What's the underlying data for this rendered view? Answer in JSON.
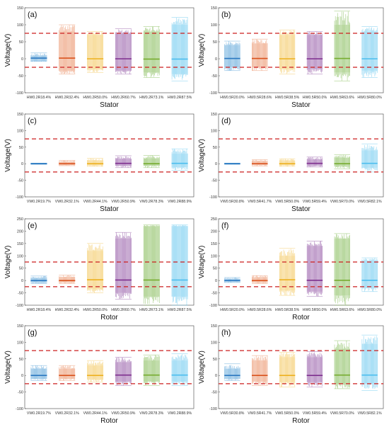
{
  "colors": [
    "#4a9ad4",
    "#e8875a",
    "#f2c24d",
    "#8a4a9e",
    "#7ab64a",
    "#5ec3ec"
  ],
  "median_colors": [
    "#2b78c0",
    "#d9531e",
    "#edb120",
    "#7e2f8e",
    "#77ac30",
    "#4dbeee"
  ],
  "threshold_color": "#cc1f1f",
  "chart_data": [
    {
      "type": "boxplot",
      "panel_label": "(a)",
      "xlabel": "Stator",
      "ylabel": "Voltage(V)",
      "ylim": [
        -100,
        150
      ],
      "yticks": [
        "150",
        "100",
        "50",
        "0",
        "-50",
        "-100"
      ],
      "thresholds": [
        75,
        -25
      ],
      "categories": [
        "HW0.2R18.4%",
        "HW0.2R32.4%",
        "HW0.2R50.0%",
        "HW0.2R60.7%",
        "HW0.2R73.1%",
        "HW0.2R87.5%"
      ],
      "series": [
        {
          "category": "HW0.2R18.4%",
          "min": -8,
          "q1": -6,
          "median": 2,
          "q3": 9,
          "max": 17
        },
        {
          "category": "HW0.2R32.4%",
          "min": -45,
          "q1": -35,
          "median": 2,
          "q3": 80,
          "max": 100
        },
        {
          "category": "HW0.2R50.0%",
          "min": -40,
          "q1": -30,
          "median": 0,
          "q3": 70,
          "max": 80
        },
        {
          "category": "HW0.2R60.7%",
          "min": -45,
          "q1": -35,
          "median": 0,
          "q3": 75,
          "max": 88
        },
        {
          "category": "HW0.2R73.1%",
          "min": -55,
          "q1": -40,
          "median": -1,
          "q3": 80,
          "max": 95
        },
        {
          "category": "HW0.2R87.5%",
          "min": -65,
          "q1": -45,
          "median": -1,
          "q3": 100,
          "max": 122
        }
      ]
    },
    {
      "type": "boxplot",
      "panel_label": "(b)",
      "xlabel": "Stator",
      "ylabel": "Voltage(V)",
      "ylim": [
        -100,
        150
      ],
      "yticks": [
        "150",
        "100",
        "50",
        "0",
        "-50",
        "-100"
      ],
      "thresholds": [
        75,
        -25
      ],
      "categories": [
        "HW0.5R20.0%",
        "HW0.5R28.6%",
        "HW0.5R38.5%",
        "HW0.5R50.0%",
        "HW0.5R63.6%",
        "HW0.5R80.0%"
      ],
      "series": [
        {
          "category": "HW0.5R20.0%",
          "min": -35,
          "q1": -25,
          "median": 1,
          "q3": 40,
          "max": 52
        },
        {
          "category": "HW0.5R28.6%",
          "min": -35,
          "q1": -25,
          "median": 1,
          "q3": 45,
          "max": 58
        },
        {
          "category": "HW0.5R38.5%",
          "min": -45,
          "q1": -30,
          "median": 0,
          "q3": 70,
          "max": 85
        },
        {
          "category": "HW0.5R50.0%",
          "min": -45,
          "q1": -30,
          "median": 0,
          "q3": 70,
          "max": 80
        },
        {
          "category": "HW0.5R63.6%",
          "min": -65,
          "q1": -40,
          "median": 1,
          "q3": 100,
          "max": 140
        },
        {
          "category": "HW0.5R80.0%",
          "min": -55,
          "q1": -35,
          "median": 0,
          "q3": 80,
          "max": 95
        }
      ]
    },
    {
      "type": "boxplot",
      "panel_label": "(c)",
      "xlabel": "Stator",
      "ylabel": "Voltage(V)",
      "ylim": [
        -100,
        150
      ],
      "yticks": [
        "150",
        "100",
        "50",
        "0",
        "-50",
        "-100"
      ],
      "thresholds": [
        75,
        -25
      ],
      "categories": [
        "VW0.2R19.7%",
        "VW0.2R32.1%",
        "VW0.2R44.1%",
        "VW0.2R50.9%",
        "VW0.2R78.3%",
        "VW0.2R88.9%"
      ],
      "series": [
        {
          "category": "VW0.2R19.7%",
          "min": -2,
          "q1": -1,
          "median": 0,
          "q3": 1,
          "max": 2
        },
        {
          "category": "VW0.2R32.1%",
          "min": -6,
          "q1": -4,
          "median": 0,
          "q3": 6,
          "max": 10
        },
        {
          "category": "VW0.2R44.1%",
          "min": -8,
          "q1": -5,
          "median": 0,
          "q3": 10,
          "max": 16
        },
        {
          "category": "VW0.2R50.9%",
          "min": -12,
          "q1": -6,
          "median": 1,
          "q3": 15,
          "max": 24
        },
        {
          "category": "VW0.2R78.3%",
          "min": -12,
          "q1": -6,
          "median": 0,
          "q3": 16,
          "max": 25
        },
        {
          "category": "VW0.2R88.9%",
          "min": -20,
          "q1": -10,
          "median": 1,
          "q3": 30,
          "max": 45
        }
      ]
    },
    {
      "type": "boxplot",
      "panel_label": "(d)",
      "xlabel": "Stator",
      "ylabel": "Voltage(V)",
      "ylim": [
        -100,
        150
      ],
      "yticks": [
        "150",
        "100",
        "50",
        "0",
        "-50",
        "-100"
      ],
      "thresholds": [
        75,
        -25
      ],
      "categories": [
        "VW0.5R30.8%",
        "VW0.5R41.7%",
        "VW0.5R50.0%",
        "VW0.5R59.4%",
        "VW0.5R70.0%",
        "VW0.5R82.1%"
      ],
      "series": [
        {
          "category": "VW0.5R30.8%",
          "min": -2,
          "q1": -1,
          "median": 0,
          "q3": 1,
          "max": 2
        },
        {
          "category": "VW0.5R41.7%",
          "min": -7,
          "q1": -4,
          "median": 0,
          "q3": 8,
          "max": 12
        },
        {
          "category": "VW0.5R50.0%",
          "min": -8,
          "q1": -5,
          "median": 0,
          "q3": 10,
          "max": 15
        },
        {
          "category": "VW0.5R59.4%",
          "min": -10,
          "q1": -6,
          "median": 1,
          "q3": 13,
          "max": 20
        },
        {
          "category": "VW0.5R70.0%",
          "min": -15,
          "q1": -8,
          "median": 0,
          "q3": 18,
          "max": 27
        },
        {
          "category": "VW0.5R82.1%",
          "min": -25,
          "q1": -12,
          "median": 1,
          "q3": 40,
          "max": 60
        }
      ]
    },
    {
      "type": "boxplot",
      "panel_label": "(e)",
      "xlabel": "Rotor",
      "ylabel": "Voltage(V)",
      "ylim": [
        -100,
        250
      ],
      "yticks": [
        "250",
        "200",
        "150",
        "100",
        "50",
        "0",
        "-50",
        "-100"
      ],
      "thresholds": [
        75,
        -25
      ],
      "categories": [
        "HW0.2R18.4%",
        "HW0.2R32.4%",
        "HW0.2R50.0%",
        "HW0.2R60.7%",
        "HW0.2R73.1%",
        "HW0.2R87.5%"
      ],
      "series": [
        {
          "category": "HW0.2R18.4%",
          "min": -12,
          "q1": -8,
          "median": 0,
          "q3": 10,
          "max": 18
        },
        {
          "category": "HW0.2R32.4%",
          "min": -12,
          "q1": -8,
          "median": 0,
          "q3": 14,
          "max": 22
        },
        {
          "category": "HW0.2R50.0%",
          "min": -50,
          "q1": -35,
          "median": 3,
          "q3": 120,
          "max": 150
        },
        {
          "category": "HW0.2R60.7%",
          "min": -75,
          "q1": -50,
          "median": 2,
          "q3": 170,
          "max": 195
        },
        {
          "category": "HW0.2R73.1%",
          "min": -100,
          "q1": -65,
          "median": 2,
          "q3": 220,
          "max": 225
        },
        {
          "category": "HW0.2R87.5%",
          "min": -100,
          "q1": -65,
          "median": 2,
          "q3": 220,
          "max": 225
        }
      ]
    },
    {
      "type": "boxplot",
      "panel_label": "(f)",
      "xlabel": "Rotor",
      "ylabel": "Voltage(V)",
      "ylim": [
        -100,
        250
      ],
      "yticks": [
        "250",
        "200",
        "150",
        "100",
        "50",
        "0",
        "-50",
        "-100"
      ],
      "thresholds": [
        75,
        -25
      ],
      "categories": [
        "HW0.5R20.0%",
        "HW0.5R28.6%",
        "HW0.5R38.5%",
        "HW0.5R50.0%",
        "HW0.5R63.6%",
        "HW0.5R80.0%"
      ],
      "series": [
        {
          "category": "HW0.5R20.0%",
          "min": -8,
          "q1": -5,
          "median": 0,
          "q3": 7,
          "max": 12
        },
        {
          "category": "HW0.5R28.6%",
          "min": -12,
          "q1": -8,
          "median": 0,
          "q3": 13,
          "max": 20
        },
        {
          "category": "HW0.5R38.5%",
          "min": -60,
          "q1": -40,
          "median": 3,
          "q3": 100,
          "max": 130
        },
        {
          "category": "HW0.5R50.0%",
          "min": -65,
          "q1": -45,
          "median": 1,
          "q3": 140,
          "max": 160
        },
        {
          "category": "HW0.5R63.6%",
          "min": -100,
          "q1": -60,
          "median": 1,
          "q3": 170,
          "max": 190
        },
        {
          "category": "HW0.5R80.0%",
          "min": -45,
          "q1": -30,
          "median": 1,
          "q3": 80,
          "max": 92
        }
      ]
    },
    {
      "type": "boxplot",
      "panel_label": "(g)",
      "xlabel": "Rotor",
      "ylabel": "Voltage(V)",
      "ylim": [
        -100,
        150
      ],
      "yticks": [
        "150",
        "100",
        "50",
        "0",
        "-50",
        "-100"
      ],
      "thresholds": [
        75,
        -25
      ],
      "categories": [
        "VW0.2R19.7%",
        "VW0.2R32.1%",
        "VW0.2R44.1%",
        "VW0.2R50.9%",
        "VW0.2R78.3%",
        "VW0.2R88.9%"
      ],
      "series": [
        {
          "category": "VW0.2R19.7%",
          "min": -15,
          "q1": -10,
          "median": 0,
          "q3": 20,
          "max": 30
        },
        {
          "category": "VW0.2R32.1%",
          "min": -15,
          "q1": -10,
          "median": 0,
          "q3": 20,
          "max": 30
        },
        {
          "category": "VW0.2R44.1%",
          "min": -20,
          "q1": -12,
          "median": 0,
          "q3": 30,
          "max": 45
        },
        {
          "category": "VW0.2R50.9%",
          "min": -30,
          "q1": -18,
          "median": 1,
          "q3": 40,
          "max": 55
        },
        {
          "category": "VW0.2R78.3%",
          "min": -30,
          "q1": -18,
          "median": 1,
          "q3": 45,
          "max": 62
        },
        {
          "category": "VW0.2R88.9%",
          "min": -30,
          "q1": -18,
          "median": 1,
          "q3": 45,
          "max": 65
        }
      ]
    },
    {
      "type": "boxplot",
      "panel_label": "(h)",
      "xlabel": "Rotor",
      "ylabel": "Voltage(V)",
      "ylim": [
        -100,
        150
      ],
      "yticks": [
        "150",
        "100",
        "50",
        "0",
        "-50",
        "-100"
      ],
      "thresholds": [
        75,
        -25
      ],
      "categories": [
        "VW0.5R30.8%",
        "VW0.5R41.7%",
        "VW0.5R50.0%",
        "VW0.5R59.4%",
        "VW0.5R70.0%",
        "VW0.5R82.1%"
      ],
      "series": [
        {
          "category": "VW0.5R30.8%",
          "min": -15,
          "q1": -10,
          "median": 0,
          "q3": 20,
          "max": 35
        },
        {
          "category": "VW0.5R41.7%",
          "min": -30,
          "q1": -18,
          "median": 0,
          "q3": 45,
          "max": 60
        },
        {
          "category": "VW0.5R50.0%",
          "min": -35,
          "q1": -20,
          "median": 0,
          "q3": 55,
          "max": 70
        },
        {
          "category": "VW0.5R59.4%",
          "min": -35,
          "q1": -20,
          "median": 0,
          "q3": 55,
          "max": 72
        },
        {
          "category": "VW0.5R70.0%",
          "min": -40,
          "q1": -25,
          "median": 1,
          "q3": 80,
          "max": 105
        },
        {
          "category": "VW0.5R82.1%",
          "min": -45,
          "q1": -25,
          "median": 1,
          "q3": 95,
          "max": 122
        }
      ]
    }
  ]
}
